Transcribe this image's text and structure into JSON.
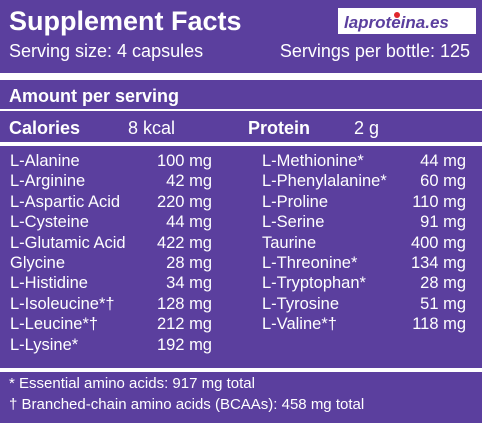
{
  "header": {
    "title": "Supplement Facts",
    "logo": "laproteina.es",
    "serving_size": "Serving size: 4 capsules",
    "servings_per_bottle": "Servings per bottle: 125"
  },
  "amount_heading": "Amount per serving",
  "energy": [
    {
      "label": "Calories",
      "amount": "8 kcal"
    },
    {
      "label": "Protein",
      "amount": "2 g"
    }
  ],
  "ingredients": {
    "left": [
      [
        "L-Alanine",
        "100 mg"
      ],
      [
        "L-Arginine",
        "42 mg"
      ],
      [
        "L-Aspartic Acid",
        "220 mg"
      ],
      [
        "L-Cysteine",
        "44 mg"
      ],
      [
        "L-Glutamic Acid",
        "422 mg"
      ],
      [
        "Glycine",
        "28 mg"
      ],
      [
        "L-Histidine",
        "34 mg"
      ],
      [
        "L-Isoleucine*†",
        "128 mg"
      ],
      [
        "L-Leucine*†",
        "212 mg"
      ],
      [
        "L-Lysine*",
        "192 mg"
      ]
    ],
    "right": [
      [
        "L-Methionine*",
        "44 mg"
      ],
      [
        "L-Phenylalanine*",
        "60 mg"
      ],
      [
        "L-Proline",
        "110 mg"
      ],
      [
        "L-Serine",
        "91 mg"
      ],
      [
        "Taurine",
        "400 mg"
      ],
      [
        "L-Threonine*",
        "134 mg"
      ],
      [
        "L-Tryptophan*",
        "28 mg"
      ],
      [
        "L-Tyrosine",
        "51 mg"
      ],
      [
        "L-Valine*†",
        "118 mg"
      ]
    ]
  },
  "footnotes": [
    "* Essential amino acids: 917 mg total",
    "† Branched-chain amino acids (BCAAs): 458 mg total"
  ]
}
